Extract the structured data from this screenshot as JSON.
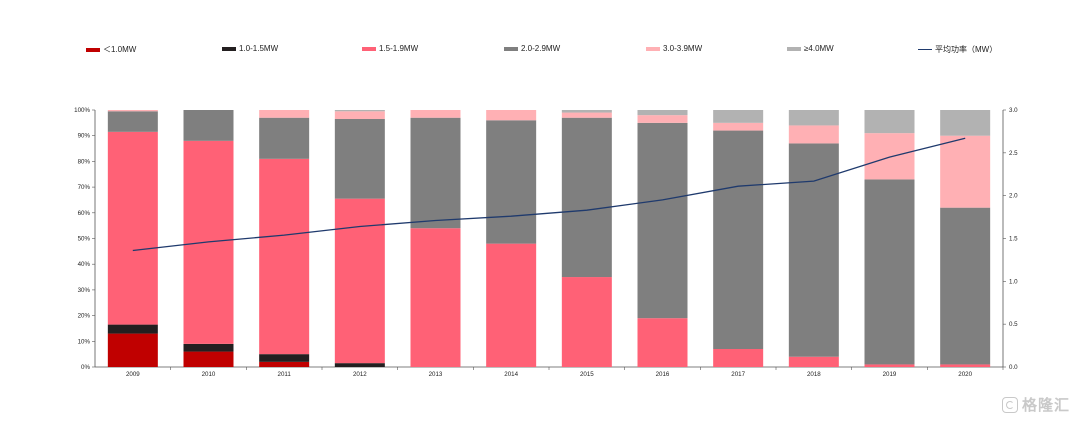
{
  "chart_data": {
    "type": "bar",
    "stacked": true,
    "categories": [
      "2009",
      "2010",
      "2011",
      "2012",
      "2013",
      "2014",
      "2015",
      "2016",
      "2017",
      "2018",
      "2019",
      "2020"
    ],
    "series": [
      {
        "name": "＜1.0MW",
        "color": "#c00000",
        "values": [
          13,
          6,
          2,
          0,
          0,
          0,
          0,
          0,
          0,
          0,
          0,
          0
        ]
      },
      {
        "name": "1.0-1.5MW",
        "color": "#231f20",
        "values": [
          3.5,
          3,
          3,
          1.5,
          0,
          0,
          0,
          0,
          0,
          0,
          0,
          0
        ]
      },
      {
        "name": "1.5-1.9MW",
        "color": "#ff6176",
        "values": [
          75,
          79,
          76,
          64,
          54,
          48,
          35,
          19,
          7,
          4,
          1,
          1
        ]
      },
      {
        "name": "2.0-2.9MW",
        "color": "#7f7f7f",
        "values": [
          8,
          12,
          16,
          31,
          43,
          48,
          62,
          76,
          85,
          83,
          72,
          61
        ]
      },
      {
        "name": "3.0-3.9MW",
        "color": "#ffb0b4",
        "values": [
          0.5,
          0,
          3,
          3,
          3,
          4,
          2,
          3,
          3,
          7,
          18,
          28
        ]
      },
      {
        "name": "≥4.0MW",
        "color": "#b2b2b2",
        "values": [
          0,
          0,
          0,
          0.5,
          0,
          0,
          1,
          2,
          5,
          6,
          9,
          10
        ]
      }
    ],
    "line_series": {
      "name": "平均功率（MW）",
      "color": "#1f3a6d",
      "axis": "right",
      "values": [
        1.36,
        1.46,
        1.54,
        1.64,
        1.71,
        1.76,
        1.83,
        1.95,
        2.11,
        2.17,
        2.45,
        2.67
      ]
    },
    "y_left": {
      "min": 0,
      "max": 100,
      "ticks": [
        "0%",
        "10%",
        "20%",
        "30%",
        "40%",
        "50%",
        "60%",
        "70%",
        "80%",
        "90%",
        "100%"
      ]
    },
    "y_right": {
      "min": 0,
      "max": 3.0,
      "ticks": [
        "0.0",
        "0.5",
        "1.0",
        "1.5",
        "2.0",
        "2.5",
        "3.0"
      ]
    },
    "legend_position": "top",
    "grid": false
  },
  "watermark": {
    "text": "格隆汇"
  }
}
